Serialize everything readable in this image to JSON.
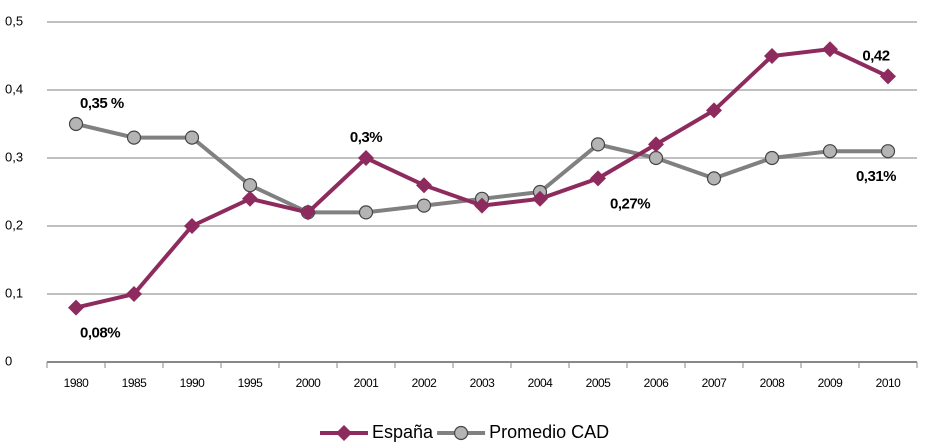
{
  "chart_data": {
    "type": "line",
    "categories": [
      "1980",
      "1985",
      "1990",
      "1995",
      "2000",
      "2001",
      "2002",
      "2003",
      "2004",
      "2005",
      "2006",
      "2007",
      "2008",
      "2009",
      "2010"
    ],
    "series": [
      {
        "name": "España",
        "color": "#8e2b5e",
        "marker": "diamond",
        "values": [
          0.08,
          0.1,
          0.2,
          0.24,
          0.22,
          0.3,
          0.26,
          0.23,
          0.24,
          0.27,
          0.32,
          0.37,
          0.45,
          0.46,
          0.42
        ],
        "value_labels": [
          "0,08%",
          null,
          null,
          null,
          null,
          "0,3%",
          null,
          null,
          null,
          "0,27%",
          null,
          null,
          null,
          null,
          "0,42"
        ]
      },
      {
        "name": "Promedio CAD",
        "color": "#808080",
        "marker": "circle",
        "values": [
          0.35,
          0.33,
          0.33,
          0.26,
          0.22,
          0.22,
          0.23,
          0.24,
          0.25,
          0.32,
          0.3,
          0.27,
          0.3,
          0.31,
          0.31
        ],
        "value_labels": [
          "0,35 %",
          null,
          null,
          null,
          null,
          null,
          null,
          null,
          null,
          null,
          null,
          null,
          null,
          null,
          "0,31%"
        ]
      }
    ],
    "ylim": [
      0,
      0.5
    ],
    "yticks": [
      0,
      {
        "value": 0.1,
        "label": "0,1"
      },
      {
        "value": 0.2,
        "label": "0,2"
      },
      {
        "value": 0.3,
        "label": "0,3"
      },
      {
        "value": 0.4,
        "label": "0,4"
      },
      {
        "value": 0.5,
        "label": "0,5"
      }
    ],
    "grid": true,
    "legend": "bottom"
  }
}
